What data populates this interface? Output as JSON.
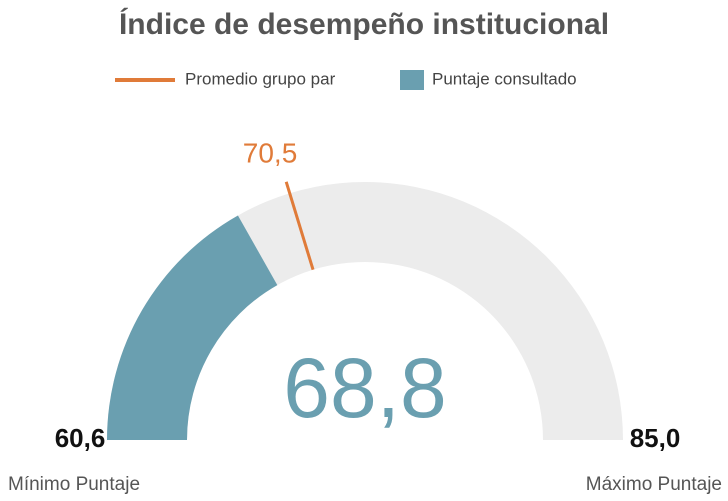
{
  "chart_data": {
    "type": "gauge",
    "title": "Índice de desempeño institucional",
    "series": [
      {
        "name": "Promedio grupo par",
        "color": "#e07b39",
        "values": [
          70.5
        ],
        "value_labels": [
          "70,5"
        ]
      },
      {
        "name": "Puntaje consultado",
        "color": "#6a9fb0",
        "values": [
          68.8
        ],
        "value_labels": [
          "68,8"
        ]
      }
    ],
    "track_color": "#ececec",
    "ylim": [
      60.6,
      85.0
    ],
    "yticks": [
      {
        "value": 60.6,
        "label": "60,6"
      },
      {
        "value": 85.0,
        "label": "85,0"
      }
    ],
    "min_label": "Mínimo Puntaje",
    "max_label": "Máximo Puntaje"
  }
}
